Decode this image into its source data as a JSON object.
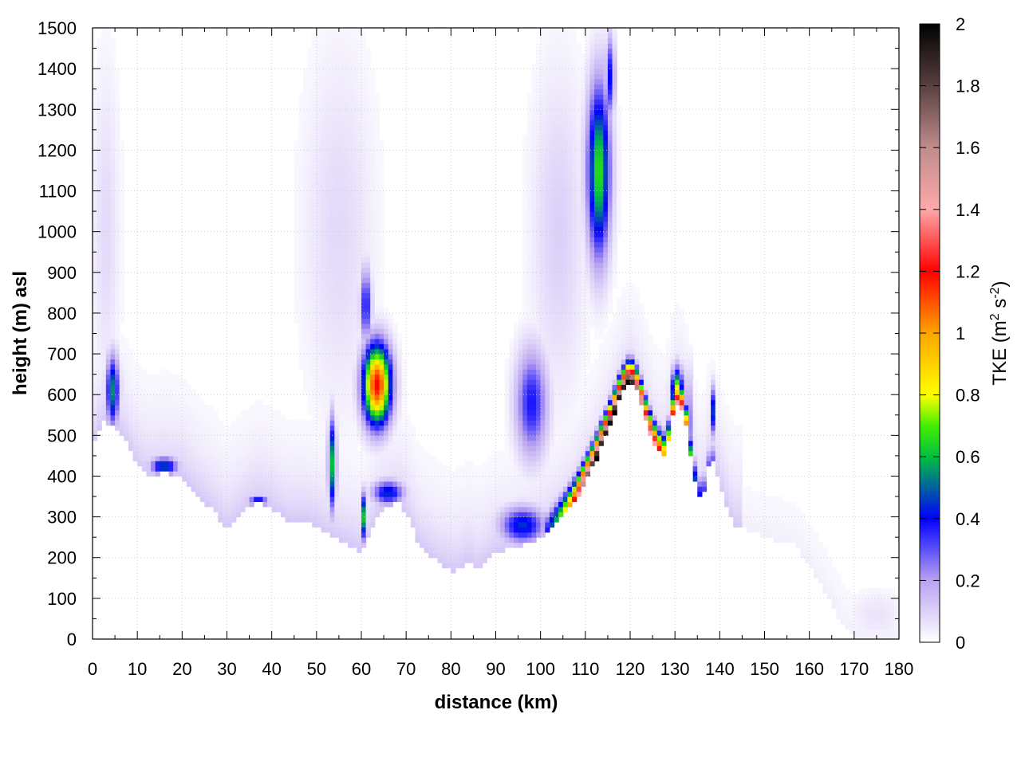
{
  "chart_data": {
    "type": "heatmap",
    "title": "",
    "xlabel": "distance (km)",
    "ylabel": "height (m) asl",
    "xlim": [
      0,
      180
    ],
    "ylim": [
      0,
      1500
    ],
    "x_ticks": [
      0,
      10,
      20,
      30,
      40,
      50,
      60,
      70,
      80,
      90,
      100,
      110,
      120,
      130,
      140,
      150,
      160,
      170,
      180
    ],
    "y_ticks": [
      0,
      100,
      200,
      300,
      400,
      500,
      600,
      700,
      800,
      900,
      1000,
      1100,
      1200,
      1300,
      1400,
      1500
    ],
    "grid": true,
    "colorbar": {
      "label_main": "TKE (m",
      "label_sup1": "2",
      "label_mid": " s",
      "label_sup2": "-2",
      "label_end": ")",
      "range": [
        0,
        2
      ],
      "ticks": [
        "0",
        "0.2",
        "0.4",
        "0.6",
        "0.8",
        "1",
        "1.2",
        "1.4",
        "1.6",
        "1.8",
        "2"
      ],
      "color_stops": [
        {
          "v": 0.0,
          "c": "#ffffff"
        },
        {
          "v": 0.2,
          "c": "#b9a2f2"
        },
        {
          "v": 0.4,
          "c": "#0000ff"
        },
        {
          "v": 0.6,
          "c": "#00c040"
        },
        {
          "v": 0.7,
          "c": "#44ee00"
        },
        {
          "v": 0.8,
          "c": "#ffff00"
        },
        {
          "v": 1.0,
          "c": "#ffa500"
        },
        {
          "v": 1.2,
          "c": "#ff0000"
        },
        {
          "v": 1.4,
          "c": "#ffa8a8"
        },
        {
          "v": 1.6,
          "c": "#bf8c8c"
        },
        {
          "v": 1.8,
          "c": "#5a4040"
        },
        {
          "v": 2.0,
          "c": "#000000"
        }
      ]
    },
    "terrain_height": [
      {
        "x": 0,
        "y": 465
      },
      {
        "x": 2,
        "y": 535
      },
      {
        "x": 4,
        "y": 528
      },
      {
        "x": 7,
        "y": 500
      },
      {
        "x": 10,
        "y": 425
      },
      {
        "x": 13,
        "y": 400
      },
      {
        "x": 16,
        "y": 410
      },
      {
        "x": 20,
        "y": 400
      },
      {
        "x": 24,
        "y": 345
      },
      {
        "x": 27,
        "y": 315
      },
      {
        "x": 30,
        "y": 270
      },
      {
        "x": 33,
        "y": 305
      },
      {
        "x": 37,
        "y": 342
      },
      {
        "x": 40,
        "y": 320
      },
      {
        "x": 44,
        "y": 288
      },
      {
        "x": 48,
        "y": 290
      },
      {
        "x": 52,
        "y": 260
      },
      {
        "x": 56,
        "y": 240
      },
      {
        "x": 60,
        "y": 215
      },
      {
        "x": 64,
        "y": 310
      },
      {
        "x": 68,
        "y": 340
      },
      {
        "x": 70,
        "y": 310
      },
      {
        "x": 73,
        "y": 230
      },
      {
        "x": 77,
        "y": 190
      },
      {
        "x": 81,
        "y": 165
      },
      {
        "x": 84,
        "y": 195
      },
      {
        "x": 86,
        "y": 170
      },
      {
        "x": 89,
        "y": 205
      },
      {
        "x": 92,
        "y": 220
      },
      {
        "x": 96,
        "y": 230
      },
      {
        "x": 100,
        "y": 250
      },
      {
        "x": 104,
        "y": 290
      },
      {
        "x": 108,
        "y": 345
      },
      {
        "x": 112,
        "y": 430
      },
      {
        "x": 115,
        "y": 510
      },
      {
        "x": 118,
        "y": 600
      },
      {
        "x": 120,
        "y": 635
      },
      {
        "x": 122,
        "y": 600
      },
      {
        "x": 124,
        "y": 520
      },
      {
        "x": 126,
        "y": 465
      },
      {
        "x": 128,
        "y": 450
      },
      {
        "x": 130,
        "y": 580
      },
      {
        "x": 132,
        "y": 560
      },
      {
        "x": 134,
        "y": 410
      },
      {
        "x": 136,
        "y": 330
      },
      {
        "x": 138,
        "y": 450
      },
      {
        "x": 140,
        "y": 380
      },
      {
        "x": 143,
        "y": 280
      },
      {
        "x": 150,
        "y": 250
      },
      {
        "x": 157,
        "y": 230
      },
      {
        "x": 163,
        "y": 130
      },
      {
        "x": 167,
        "y": 40
      },
      {
        "x": 170,
        "y": 0
      },
      {
        "x": 180,
        "y": 0
      }
    ],
    "features": [
      {
        "x": 4.5,
        "y": 610,
        "rx": 1.4,
        "ry": 85,
        "peak": 0.55
      },
      {
        "x": 16,
        "y": 425,
        "rx": 3.0,
        "ry": 22,
        "peak": 0.5
      },
      {
        "x": 37,
        "y": 340,
        "rx": 2.2,
        "ry": 14,
        "peak": 0.42
      },
      {
        "x": 53.5,
        "y": 430,
        "rx": 0.8,
        "ry": 110,
        "peak": 0.6
      },
      {
        "x": 60.5,
        "y": 300,
        "rx": 0.6,
        "ry": 55,
        "peak": 0.62
      },
      {
        "x": 63.5,
        "y": 625,
        "rx": 3.0,
        "ry": 95,
        "peak": 1.2
      },
      {
        "x": 61,
        "y": 820,
        "rx": 1.2,
        "ry": 90,
        "peak": 0.4
      },
      {
        "x": 66,
        "y": 360,
        "rx": 3.5,
        "ry": 30,
        "peak": 0.45
      },
      {
        "x": 96,
        "y": 280,
        "rx": 5.0,
        "ry": 45,
        "peak": 0.45
      },
      {
        "x": 98,
        "y": 580,
        "rx": 3.5,
        "ry": 130,
        "peak": 0.38
      },
      {
        "x": 113,
        "y": 1150,
        "rx": 2.5,
        "ry": 210,
        "peak": 0.68
      },
      {
        "x": 115.5,
        "y": 1380,
        "rx": 1.0,
        "ry": 100,
        "peak": 0.4
      },
      {
        "x": 130.5,
        "y": 600,
        "rx": 1.2,
        "ry": 60,
        "peak": 0.9
      },
      {
        "x": 133,
        "y": 530,
        "rx": 1.0,
        "ry": 120,
        "peak": 0.3
      },
      {
        "x": 138.5,
        "y": 560,
        "rx": 0.5,
        "ry": 60,
        "peak": 0.45
      },
      {
        "x": 55,
        "y": 1000,
        "rx": 8.0,
        "ry": 450,
        "peak": 0.08
      },
      {
        "x": 104,
        "y": 1000,
        "rx": 6.0,
        "ry": 400,
        "peak": 0.1
      },
      {
        "x": 3,
        "y": 1000,
        "rx": 3.0,
        "ry": 400,
        "peak": 0.08
      },
      {
        "x": 175,
        "y": 60,
        "rx": 6.0,
        "ry": 60,
        "peak": 0.06
      }
    ],
    "surface_band": [
      {
        "x": 103,
        "peak": 0.55
      },
      {
        "x": 106,
        "peak": 0.9
      },
      {
        "x": 109,
        "peak": 1.5
      },
      {
        "x": 112,
        "peak": 2.0
      },
      {
        "x": 116,
        "peak": 2.0
      },
      {
        "x": 120,
        "peak": 2.0
      },
      {
        "x": 123,
        "peak": 1.4
      },
      {
        "x": 126,
        "peak": 1.4
      },
      {
        "x": 128,
        "peak": 0.8
      },
      {
        "x": 131,
        "peak": 1.6
      },
      {
        "x": 134,
        "peak": 0.5
      },
      {
        "x": 137,
        "peak": 0.3
      }
    ]
  }
}
